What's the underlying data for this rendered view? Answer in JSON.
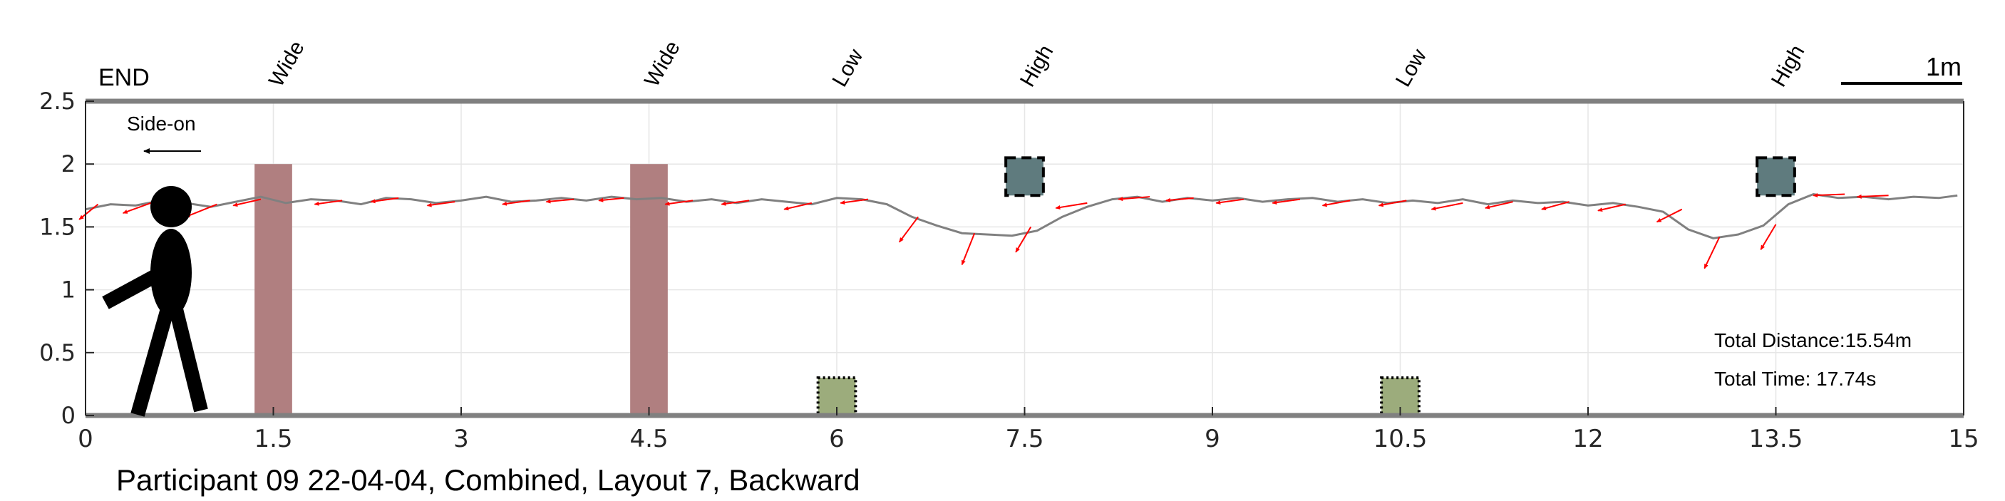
{
  "chart_data": {
    "type": "line",
    "title": "Participant 09 22-04-04, Combined, Layout 7, Backward",
    "xlim": [
      0,
      15
    ],
    "ylim": [
      0,
      2.5
    ],
    "x_ticks": [
      "0",
      "1.5",
      "3",
      "4.5",
      "6",
      "7.5",
      "9",
      "10.5",
      "12",
      "13.5",
      "15"
    ],
    "y_ticks": [
      "0",
      "0.5",
      "1",
      "1.5",
      "2",
      "2.5"
    ],
    "grid": true,
    "end_label": "END",
    "view_label": "Side-on",
    "scale_bar": {
      "label": "1m",
      "length": 1
    },
    "obstacle_labels": [
      {
        "text": "Wide",
        "x": 1.5
      },
      {
        "text": "Wide",
        "x": 4.5
      },
      {
        "text": "Low",
        "x": 6.0
      },
      {
        "text": "High",
        "x": 7.5
      },
      {
        "text": "Low",
        "x": 10.5
      },
      {
        "text": "High",
        "x": 13.5
      }
    ],
    "obstacles": [
      {
        "kind": "wide",
        "x0": 1.35,
        "x1": 1.65,
        "y0": 0,
        "y1": 2.0,
        "color": "#b07f80"
      },
      {
        "kind": "wide",
        "x0": 4.35,
        "x1": 4.65,
        "y0": 0,
        "y1": 2.0,
        "color": "#b07f80"
      },
      {
        "kind": "low",
        "x0": 5.85,
        "x1": 6.15,
        "y0": 0,
        "y1": 0.3,
        "color": "#9cac7c"
      },
      {
        "kind": "high",
        "x0": 7.35,
        "x1": 7.65,
        "y0": 1.75,
        "y1": 2.05,
        "color": "#5f7b7e"
      },
      {
        "kind": "low",
        "x0": 10.35,
        "x1": 10.65,
        "y0": 0,
        "y1": 0.3,
        "color": "#9cac7c"
      },
      {
        "kind": "high",
        "x0": 13.35,
        "x1": 13.65,
        "y0": 1.75,
        "y1": 2.05,
        "color": "#5f7b7e"
      }
    ],
    "trajectory": {
      "x": [
        0,
        0.2,
        0.4,
        0.6,
        0.8,
        1.0,
        1.2,
        1.4,
        1.6,
        1.8,
        2.0,
        2.2,
        2.4,
        2.6,
        2.8,
        3.0,
        3.2,
        3.4,
        3.6,
        3.8,
        4.0,
        4.2,
        4.4,
        4.6,
        4.8,
        5.0,
        5.2,
        5.4,
        5.6,
        5.8,
        6.0,
        6.2,
        6.4,
        6.6,
        6.8,
        7.0,
        7.2,
        7.4,
        7.6,
        7.8,
        8.0,
        8.2,
        8.4,
        8.6,
        8.8,
        9.0,
        9.2,
        9.4,
        9.6,
        9.8,
        10.0,
        10.2,
        10.4,
        10.6,
        10.8,
        11.0,
        11.2,
        11.4,
        11.6,
        11.8,
        12.0,
        12.2,
        12.4,
        12.6,
        12.8,
        13.0,
        13.2,
        13.4,
        13.6,
        13.8,
        14.0,
        14.2,
        14.4,
        14.6,
        14.8,
        14.95
      ],
      "y": [
        1.64,
        1.68,
        1.67,
        1.71,
        1.69,
        1.66,
        1.7,
        1.74,
        1.69,
        1.72,
        1.71,
        1.68,
        1.73,
        1.72,
        1.69,
        1.71,
        1.74,
        1.7,
        1.71,
        1.73,
        1.71,
        1.74,
        1.72,
        1.73,
        1.7,
        1.72,
        1.69,
        1.72,
        1.7,
        1.68,
        1.73,
        1.72,
        1.68,
        1.58,
        1.51,
        1.45,
        1.44,
        1.43,
        1.47,
        1.58,
        1.66,
        1.72,
        1.74,
        1.7,
        1.73,
        1.71,
        1.73,
        1.7,
        1.72,
        1.73,
        1.7,
        1.72,
        1.69,
        1.71,
        1.69,
        1.72,
        1.68,
        1.71,
        1.69,
        1.7,
        1.67,
        1.69,
        1.66,
        1.62,
        1.48,
        1.41,
        1.44,
        1.51,
        1.68,
        1.76,
        1.73,
        1.74,
        1.72,
        1.74,
        1.73,
        1.75
      ],
      "color": "#808080"
    },
    "head_direction_arrows": {
      "color": "#ff0000",
      "arrows": [
        {
          "x": 0.1,
          "y": 1.68,
          "dx": -0.15,
          "dy": -0.12
        },
        {
          "x": 0.55,
          "y": 1.7,
          "dx": -0.25,
          "dy": -0.09
        },
        {
          "x": 1.05,
          "y": 1.68,
          "dx": -0.25,
          "dy": -0.1
        },
        {
          "x": 1.4,
          "y": 1.72,
          "dx": -0.22,
          "dy": -0.05
        },
        {
          "x": 2.05,
          "y": 1.71,
          "dx": -0.22,
          "dy": -0.03
        },
        {
          "x": 2.5,
          "y": 1.73,
          "dx": -0.22,
          "dy": -0.03
        },
        {
          "x": 2.95,
          "y": 1.7,
          "dx": -0.22,
          "dy": -0.03
        },
        {
          "x": 3.55,
          "y": 1.71,
          "dx": -0.22,
          "dy": -0.03
        },
        {
          "x": 3.9,
          "y": 1.72,
          "dx": -0.22,
          "dy": -0.02
        },
        {
          "x": 4.3,
          "y": 1.73,
          "dx": -0.2,
          "dy": -0.02
        },
        {
          "x": 4.85,
          "y": 1.71,
          "dx": -0.22,
          "dy": -0.03
        },
        {
          "x": 5.3,
          "y": 1.71,
          "dx": -0.22,
          "dy": -0.03
        },
        {
          "x": 5.8,
          "y": 1.69,
          "dx": -0.22,
          "dy": -0.05
        },
        {
          "x": 6.25,
          "y": 1.72,
          "dx": -0.22,
          "dy": -0.03
        },
        {
          "x": 6.65,
          "y": 1.58,
          "dx": -0.15,
          "dy": -0.2
        },
        {
          "x": 7.1,
          "y": 1.45,
          "dx": -0.1,
          "dy": -0.25
        },
        {
          "x": 7.55,
          "y": 1.5,
          "dx": -0.12,
          "dy": -0.2
        },
        {
          "x": 8.0,
          "y": 1.69,
          "dx": -0.25,
          "dy": -0.04
        },
        {
          "x": 8.5,
          "y": 1.74,
          "dx": -0.25,
          "dy": -0.02
        },
        {
          "x": 8.85,
          "y": 1.73,
          "dx": -0.22,
          "dy": -0.02
        },
        {
          "x": 9.25,
          "y": 1.72,
          "dx": -0.22,
          "dy": -0.03
        },
        {
          "x": 9.7,
          "y": 1.72,
          "dx": -0.22,
          "dy": -0.03
        },
        {
          "x": 10.1,
          "y": 1.71,
          "dx": -0.22,
          "dy": -0.04
        },
        {
          "x": 10.55,
          "y": 1.71,
          "dx": -0.22,
          "dy": -0.04
        },
        {
          "x": 11.0,
          "y": 1.69,
          "dx": -0.25,
          "dy": -0.05
        },
        {
          "x": 11.4,
          "y": 1.7,
          "dx": -0.22,
          "dy": -0.05
        },
        {
          "x": 11.85,
          "y": 1.7,
          "dx": -0.22,
          "dy": -0.06
        },
        {
          "x": 12.3,
          "y": 1.68,
          "dx": -0.22,
          "dy": -0.05
        },
        {
          "x": 12.75,
          "y": 1.64,
          "dx": -0.2,
          "dy": -0.1
        },
        {
          "x": 13.05,
          "y": 1.42,
          "dx": -0.12,
          "dy": -0.25
        },
        {
          "x": 13.5,
          "y": 1.52,
          "dx": -0.12,
          "dy": -0.2
        },
        {
          "x": 14.05,
          "y": 1.76,
          "dx": -0.25,
          "dy": -0.01
        },
        {
          "x": 14.4,
          "y": 1.75,
          "dx": -0.25,
          "dy": -0.01
        }
      ]
    },
    "stats": {
      "total_distance": "Total Distance:15.54m",
      "total_time": "Total Time: 17.74s"
    }
  }
}
